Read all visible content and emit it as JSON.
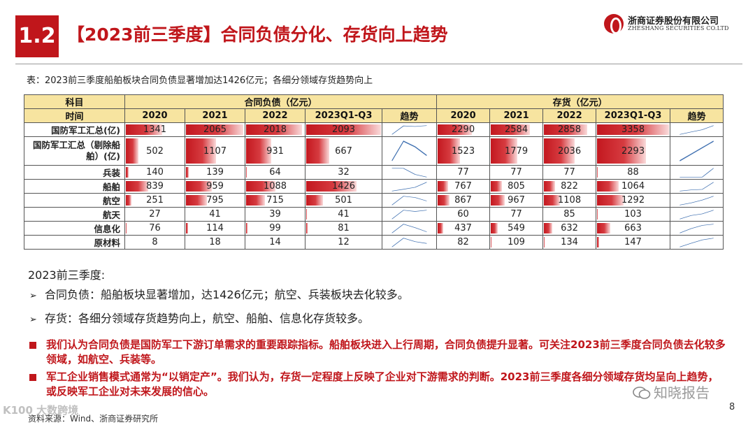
{
  "header": {
    "section_number": "1.2",
    "title": "【2023前三季度】合同负债分化、存货向上趋势",
    "logo_cn": "浙商证券股份有限公司",
    "logo_en": "ZHESHANG SECURITIES CO.LTD"
  },
  "caption": "表：2023前三季度船舶板块合同负债显著增加达1426亿元；各细分领域存货趋势向上",
  "table": {
    "corner_top": "科目",
    "corner_bottom": "时间",
    "group_liabilities": "合同负债（亿元）",
    "group_inventory": "存货（亿元）",
    "columns": [
      "2020",
      "2021",
      "2022",
      "2023Q1-Q3",
      "趋势"
    ],
    "bar_max": {
      "liabilities": 2093,
      "inventory": 3358
    },
    "rows": [
      {
        "label": "国防军工汇总(亿)",
        "liabilities": [
          "1341",
          "2065",
          "2018",
          "2093"
        ],
        "inventory": [
          "2290",
          "2584",
          "2858",
          "3358"
        ]
      },
      {
        "label": "国防军工汇总（剔除船舶）(亿)",
        "liabilities": [
          "502",
          "1107",
          "931",
          "667"
        ],
        "inventory": [
          "1523",
          "1779",
          "2036",
          "2293"
        ]
      },
      {
        "label": "兵装",
        "liabilities": [
          "140",
          "139",
          "64",
          "32"
        ],
        "inventory": [
          "77",
          "77",
          "77",
          "88"
        ]
      },
      {
        "label": "船舶",
        "liabilities": [
          "839",
          "959",
          "1088",
          "1426"
        ],
        "inventory": [
          "767",
          "805",
          "822",
          "1064"
        ]
      },
      {
        "label": "航空",
        "liabilities": [
          "251",
          "795",
          "715",
          "501"
        ],
        "inventory": [
          "867",
          "967",
          "1108",
          "1292"
        ]
      },
      {
        "label": "航天",
        "liabilities": [
          "27",
          "41",
          "39",
          "41"
        ],
        "inventory": [
          "60",
          "77",
          "85",
          "103"
        ]
      },
      {
        "label": "信息化",
        "liabilities": [
          "76",
          "114",
          "99",
          "81"
        ],
        "inventory": [
          "437",
          "549",
          "632",
          "663"
        ]
      },
      {
        "label": "原材料",
        "liabilities": [
          "8",
          "18",
          "14",
          "12"
        ],
        "inventory": [
          "82",
          "109",
          "134",
          "147"
        ]
      }
    ]
  },
  "summary": {
    "heading": "2023前三季度:",
    "bullets": [
      "合同负债：船舶板块显著增加，达1426亿元；航空、兵装板块去化较多。",
      "存货：各细分领域存货趋势向上，航空、船舶、信息化存货较多。"
    ],
    "conclusions": [
      "我们认为合同负债是国防军工下游订单需求的重要跟踪指标。船舶板块进入上行周期，合同负债提升显著。可关注2023前三季度合同负债去化较多领域，如航空、兵装等。",
      "军工企业销售模式通常为“以销定产”。我们认为，存货一定程度上反映了企业对下游需求的判断。2023前三季度各细分领域存货均呈向上趋势，或反映军工企业对未来发展的信心。"
    ]
  },
  "footer": {
    "source": "资料来源：Wind、浙商证券研究所",
    "page": "8",
    "watermark_left": "K100 大数跨境",
    "watermark_right": "知晓报告"
  },
  "colors": {
    "brand_red": "#c0161b",
    "header_fill": "#f7e4a0",
    "trend_line": "#3e6fb0"
  }
}
